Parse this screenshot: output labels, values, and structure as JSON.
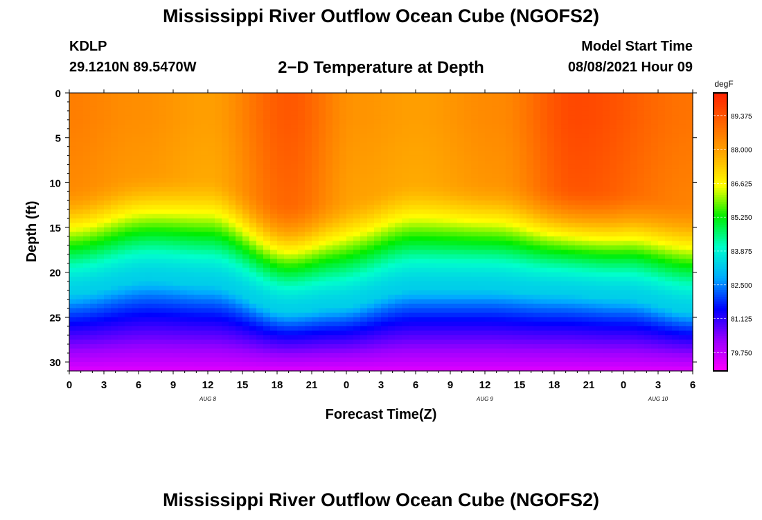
{
  "header": {
    "title": "Mississippi River Outflow Ocean Cube (NGOFS2)",
    "station": "KDLP",
    "coordinates": "29.1210N  89.5470W",
    "subtitle": "2−D Temperature at Depth",
    "model_start_label": "Model Start Time",
    "model_start_value": "08/08/2021 Hour 09"
  },
  "footer": {
    "title": "Mississippi River Outflow Ocean Cube (NGOFS2)"
  },
  "chart_data": {
    "type": "heatmap",
    "xlabel": "Forecast Time(Z)",
    "ylabel": "Depth (ft)",
    "x_tick_labels": [
      "0",
      "3",
      "6",
      "9",
      "12",
      "15",
      "18",
      "21",
      "0",
      "3",
      "6",
      "9",
      "12",
      "15",
      "18",
      "21",
      "0",
      "3",
      "6"
    ],
    "x_range_hours": [
      0,
      54
    ],
    "date_labels": [
      {
        "label": "AUG 8",
        "hour": 12
      },
      {
        "label": "AUG 9",
        "hour": 36
      },
      {
        "label": "AUG 10",
        "hour": 51
      }
    ],
    "y_ticks": [
      0,
      5,
      10,
      15,
      20,
      25,
      30
    ],
    "ylim": [
      0,
      31
    ],
    "y_reversed": true,
    "colorbar": {
      "unit": "degF",
      "ticks": [
        "89.375",
        "88.000",
        "86.625",
        "85.250",
        "83.875",
        "82.500",
        "81.125",
        "79.750"
      ],
      "range": [
        79.0,
        90.3
      ],
      "colors": [
        "#ff00ff",
        "#9900ff",
        "#0000ff",
        "#00aaff",
        "#00ffcc",
        "#00ee00",
        "#ffff00",
        "#ffaa00",
        "#ff6600",
        "#ff2200"
      ]
    },
    "field_description": "temperature degF vs forecast hour (x) and depth ft (y)",
    "surface_layer": [
      {
        "hour": 0,
        "temp": 88.6
      },
      {
        "hour": 6,
        "temp": 88.3
      },
      {
        "hour": 12,
        "temp": 88.0
      },
      {
        "hour": 19,
        "temp": 89.3
      },
      {
        "hour": 25,
        "temp": 88.2
      },
      {
        "hour": 30,
        "temp": 88.0
      },
      {
        "hour": 37,
        "temp": 88.4
      },
      {
        "hour": 44,
        "temp": 89.6
      },
      {
        "hour": 54,
        "temp": 88.8
      }
    ],
    "thermocline_blue_depth": [
      {
        "hour": 0,
        "depth": 22.5
      },
      {
        "hour": 7,
        "depth": 21.0
      },
      {
        "hour": 12,
        "depth": 21.5
      },
      {
        "hour": 19,
        "depth": 24.5
      },
      {
        "hour": 23,
        "depth": 24.0
      },
      {
        "hour": 30,
        "depth": 22.0
      },
      {
        "hour": 36,
        "depth": 22.0
      },
      {
        "hour": 42,
        "depth": 22.5
      },
      {
        "hour": 48,
        "depth": 23.0
      },
      {
        "hour": 54,
        "depth": 24.5
      }
    ]
  }
}
